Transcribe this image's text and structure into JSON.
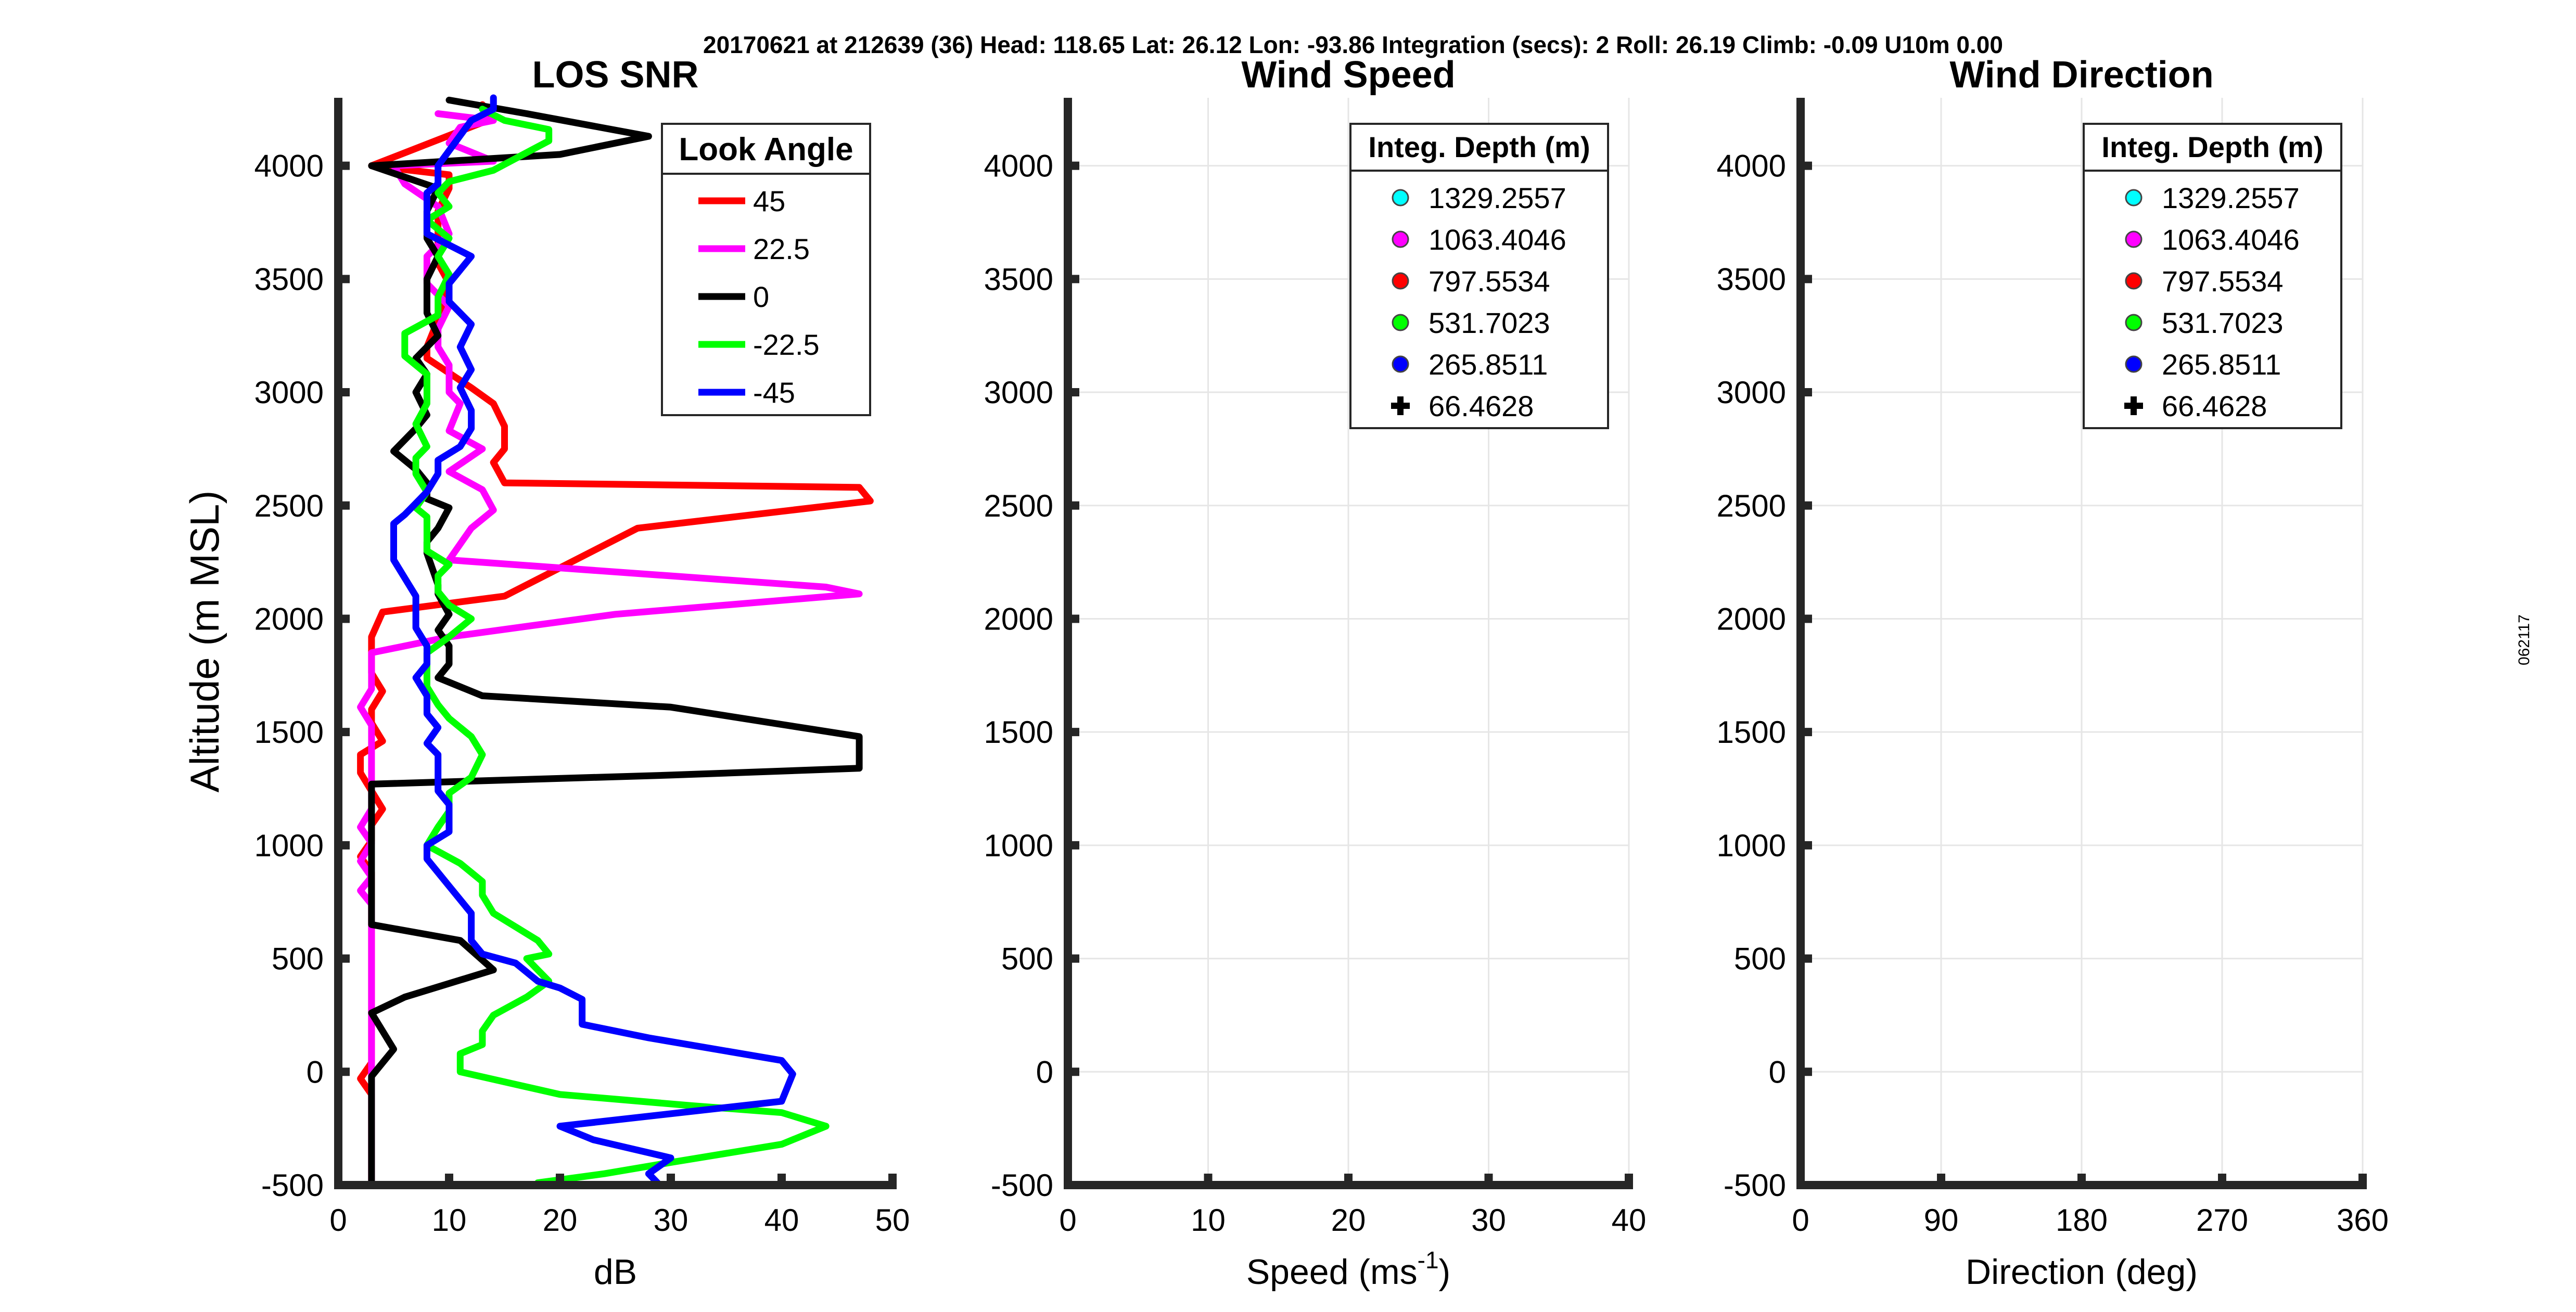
{
  "header": "20170621 at 212639 (36)  Head: 118.65  Lat: 26.12  Lon: -93.86  Integration (secs): 2  Roll: 26.19  Climb: -0.09  U10m 0.00",
  "side_label": "062117",
  "colors": {
    "cyan": "#00ffff",
    "magenta": "#ff00ff",
    "red": "#ff0000",
    "green": "#00ff00",
    "blue": "#0000ff",
    "black": "#000000"
  },
  "chart_data": [
    {
      "id": "snr",
      "type": "line",
      "title": "LOS SNR",
      "xlabel": "dB",
      "ylabel": "Altitude (m MSL)",
      "xlim": [
        0,
        50
      ],
      "ylim": [
        -500,
        4300
      ],
      "xticks": [
        "0",
        "10",
        "20",
        "30",
        "40",
        "50"
      ],
      "yticks": [
        "-500",
        "0",
        "500",
        "1000",
        "1500",
        "2000",
        "2500",
        "3000",
        "3500",
        "4000"
      ],
      "grid": false,
      "legend": {
        "title": "Look Angle",
        "position": "top-right"
      },
      "series": [
        {
          "name": "45",
          "color": "#ff0000",
          "x": [
            3,
            3,
            3,
            3,
            3,
            3,
            3,
            2,
            3,
            3,
            3,
            3,
            3,
            3,
            3,
            3,
            3,
            3,
            3,
            3,
            3,
            3,
            3,
            2,
            3,
            3,
            4,
            3,
            2,
            2,
            4,
            3,
            3,
            4,
            3,
            3,
            3,
            4,
            15,
            27,
            48,
            47,
            15,
            14,
            15,
            15,
            14,
            12,
            8,
            8,
            9,
            10,
            9,
            9,
            10,
            10,
            3,
            14,
            13
          ],
          "y": [
            -480,
            -430,
            -380,
            -320,
            -250,
            -180,
            -100,
            -30,
            40,
            100,
            160,
            220,
            300,
            360,
            420,
            470,
            520,
            580,
            640,
            700,
            760,
            820,
            880,
            950,
            1020,
            1090,
            1160,
            1240,
            1320,
            1400,
            1460,
            1540,
            1600,
            1680,
            1760,
            1840,
            1920,
            2030,
            2100,
            2400,
            2520,
            2580,
            2600,
            2690,
            2750,
            2850,
            2950,
            3020,
            3150,
            3200,
            3320,
            3480,
            3570,
            3800,
            3900,
            3960,
            4000,
            4210,
            4270
          ]
        },
        {
          "name": "22.5",
          "color": "#ff00ff",
          "x": [
            3,
            3,
            3,
            3,
            3,
            3,
            3,
            3,
            3,
            3,
            3,
            3,
            3,
            3,
            3,
            3,
            3,
            3,
            3,
            3,
            3,
            2,
            3,
            2,
            3,
            2,
            3,
            3,
            3,
            3,
            3,
            3,
            2,
            3,
            3,
            3,
            10,
            25,
            47,
            44,
            10,
            12,
            14,
            13,
            10,
            13,
            10,
            11,
            10,
            10,
            9,
            9,
            10,
            8,
            8,
            10,
            9,
            6,
            5,
            14,
            10,
            11,
            14,
            9
          ],
          "y": [
            -500,
            -450,
            -400,
            -340,
            -280,
            -200,
            -120,
            -50,
            20,
            80,
            140,
            200,
            260,
            320,
            380,
            440,
            500,
            560,
            620,
            680,
            740,
            800,
            860,
            930,
            1010,
            1080,
            1160,
            1240,
            1310,
            1380,
            1460,
            1530,
            1610,
            1690,
            1770,
            1850,
            1920,
            2020,
            2110,
            2140,
            2260,
            2400,
            2480,
            2570,
            2650,
            2750,
            2830,
            2950,
            3000,
            3120,
            3200,
            3280,
            3380,
            3480,
            3600,
            3700,
            3820,
            3920,
            4000,
            4020,
            4100,
            4170,
            4200,
            4230
          ]
        },
        {
          "name": "0",
          "color": "#000000",
          "x": [
            3,
            3,
            3,
            3,
            3,
            3,
            3,
            3,
            4,
            5,
            3,
            6,
            14,
            11,
            3,
            3,
            3,
            3,
            3,
            3,
            3,
            3,
            3,
            3,
            30,
            47,
            47,
            30,
            13,
            9,
            10,
            10,
            9,
            10,
            9,
            9,
            8,
            8,
            9,
            10,
            8,
            8,
            7,
            5,
            7,
            8,
            7,
            8,
            7,
            9,
            8,
            8,
            8,
            9,
            8,
            8,
            9,
            3,
            20,
            28,
            17,
            10
          ],
          "y": [
            -500,
            -450,
            -400,
            -330,
            -260,
            -180,
            -100,
            -20,
            40,
            100,
            260,
            330,
            450,
            580,
            650,
            700,
            760,
            820,
            880,
            960,
            1040,
            1120,
            1200,
            1270,
            1310,
            1340,
            1480,
            1610,
            1660,
            1740,
            1800,
            1880,
            1950,
            2020,
            2110,
            2150,
            2290,
            2340,
            2400,
            2490,
            2530,
            2600,
            2660,
            2740,
            2840,
            2900,
            3000,
            3080,
            3150,
            3250,
            3350,
            3420,
            3500,
            3600,
            3680,
            3800,
            3900,
            4000,
            4050,
            4130,
            4230,
            4290
          ]
        },
        {
          "name": "-22.5",
          "color": "#00ff00",
          "x": [
            18,
            24,
            30,
            40,
            44,
            40,
            32,
            20,
            11,
            11,
            13,
            13,
            14,
            17,
            19,
            18,
            17,
            19,
            18,
            16,
            14,
            13,
            13,
            11,
            8,
            9,
            10,
            10,
            12,
            13,
            12,
            10,
            9,
            8,
            8,
            8,
            10,
            12,
            10,
            9,
            9,
            10,
            8,
            8,
            8,
            7,
            8,
            7,
            7,
            8,
            7,
            8,
            8,
            8,
            6,
            6,
            9,
            9,
            10,
            9,
            10,
            8,
            10,
            9,
            10,
            14,
            19,
            19,
            15,
            13
          ],
          "y": [
            -490,
            -450,
            -400,
            -320,
            -240,
            -180,
            -150,
            -100,
            0,
            80,
            120,
            180,
            250,
            330,
            400,
            450,
            500,
            520,
            580,
            640,
            700,
            780,
            840,
            920,
            1000,
            1080,
            1150,
            1230,
            1300,
            1400,
            1480,
            1560,
            1620,
            1700,
            1760,
            1850,
            1920,
            2000,
            2060,
            2120,
            2190,
            2240,
            2300,
            2360,
            2450,
            2490,
            2560,
            2640,
            2710,
            2760,
            2860,
            2950,
            3020,
            3080,
            3160,
            3260,
            3340,
            3420,
            3520,
            3600,
            3680,
            3760,
            3820,
            3880,
            3930,
            3980,
            4110,
            4160,
            4200,
            4250
          ]
        },
        {
          "name": "-45",
          "color": "#0000ff",
          "x": [
            29,
            28,
            30,
            23,
            20,
            40,
            41,
            40,
            28,
            22,
            22,
            20,
            18,
            16,
            13,
            12,
            12,
            12,
            11,
            10,
            9,
            8,
            8,
            10,
            10,
            10,
            9,
            9,
            9,
            8,
            9,
            8,
            8,
            7,
            8,
            8,
            7,
            7,
            7,
            6,
            5,
            5,
            5,
            6,
            7,
            8,
            9,
            9,
            11,
            12,
            12,
            11,
            12,
            11,
            12,
            10,
            10,
            12,
            8,
            8,
            8,
            9,
            9,
            9,
            12,
            14,
            14
          ],
          "y": [
            -500,
            -450,
            -380,
            -300,
            -240,
            -130,
            -10,
            50,
            150,
            210,
            320,
            370,
            400,
            480,
            520,
            580,
            640,
            700,
            760,
            820,
            880,
            940,
            1000,
            1060,
            1120,
            1180,
            1240,
            1300,
            1400,
            1450,
            1520,
            1580,
            1660,
            1740,
            1800,
            1880,
            1960,
            2020,
            2100,
            2180,
            2260,
            2340,
            2420,
            2460,
            2510,
            2560,
            2640,
            2700,
            2760,
            2840,
            2920,
            3020,
            3100,
            3200,
            3300,
            3400,
            3480,
            3600,
            3700,
            3800,
            3880,
            3920,
            3980,
            4000,
            4200,
            4250,
            4300
          ]
        }
      ]
    },
    {
      "id": "speed",
      "type": "scatter",
      "title": "Wind Speed",
      "xlabel": "Speed (ms",
      "xlabel_sup": "-1",
      "xlabel_tail": ")",
      "xlim": [
        0,
        40
      ],
      "ylim": [
        -500,
        4300
      ],
      "xticks": [
        "0",
        "10",
        "20",
        "30",
        "40"
      ],
      "yticks": [
        "-500",
        "0",
        "500",
        "1000",
        "1500",
        "2000",
        "2500",
        "3000",
        "3500",
        "4000"
      ],
      "grid": true,
      "legend": {
        "title": "Integ. Depth (m)",
        "position": "top-right"
      },
      "series": [
        {
          "name": "1329.2557",
          "color": "#00ffff",
          "marker": "circle",
          "x": [],
          "y": []
        },
        {
          "name": "1063.4046",
          "color": "#ff00ff",
          "marker": "circle",
          "x": [],
          "y": []
        },
        {
          "name": "797.5534",
          "color": "#ff0000",
          "marker": "circle",
          "x": [],
          "y": []
        },
        {
          "name": "531.7023",
          "color": "#00ff00",
          "marker": "circle",
          "x": [],
          "y": []
        },
        {
          "name": "265.8511",
          "color": "#0000ff",
          "marker": "circle",
          "x": [],
          "y": []
        },
        {
          "name": "66.4628",
          "color": "#000000",
          "marker": "plus",
          "x": [],
          "y": []
        }
      ]
    },
    {
      "id": "direction",
      "type": "scatter",
      "title": "Wind Direction",
      "xlabel": "Direction (deg)",
      "xlim": [
        0,
        360
      ],
      "ylim": [
        -500,
        4300
      ],
      "xticks": [
        "0",
        "90",
        "180",
        "270",
        "360"
      ],
      "yticks": [
        "-500",
        "0",
        "500",
        "1000",
        "1500",
        "2000",
        "2500",
        "3000",
        "3500",
        "4000"
      ],
      "grid": true,
      "legend": {
        "title": "Integ. Depth (m)",
        "position": "top-right"
      },
      "series": [
        {
          "name": "1329.2557",
          "color": "#00ffff",
          "marker": "circle",
          "x": [],
          "y": []
        },
        {
          "name": "1063.4046",
          "color": "#ff00ff",
          "marker": "circle",
          "x": [],
          "y": []
        },
        {
          "name": "797.5534",
          "color": "#ff0000",
          "marker": "circle",
          "x": [],
          "y": []
        },
        {
          "name": "531.7023",
          "color": "#00ff00",
          "marker": "circle",
          "x": [],
          "y": []
        },
        {
          "name": "265.8511",
          "color": "#0000ff",
          "marker": "circle",
          "x": [],
          "y": []
        },
        {
          "name": "66.4628",
          "color": "#000000",
          "marker": "plus",
          "x": [],
          "y": []
        }
      ]
    }
  ]
}
